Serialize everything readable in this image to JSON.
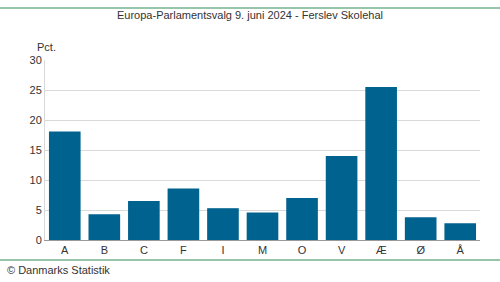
{
  "chart_data": {
    "type": "bar",
    "title": "Europa-Parlamentsvalg 9. juni 2024 - Ferslev Skolehal",
    "ylabel": "Pct.",
    "annotations": [
      "© Danmarks Statistik"
    ],
    "categories": [
      "A",
      "B",
      "C",
      "F",
      "I",
      "M",
      "O",
      "V",
      "Æ",
      "Ø",
      "Å"
    ],
    "values": [
      18.1,
      4.3,
      6.5,
      8.6,
      5.3,
      4.6,
      7.0,
      14.0,
      25.5,
      3.8,
      2.8
    ],
    "color": "#00628f",
    "ylim": [
      0,
      30
    ],
    "yticks": [
      0,
      5,
      10,
      15,
      20,
      25,
      30
    ],
    "grid": true
  }
}
